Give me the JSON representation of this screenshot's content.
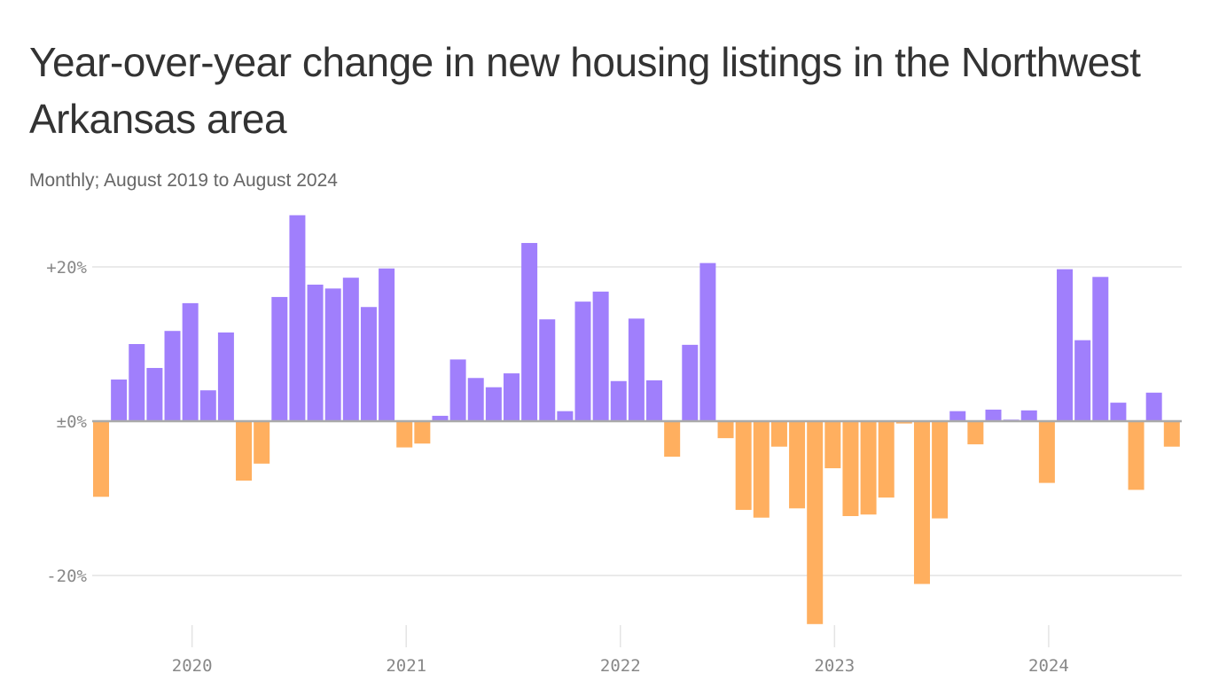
{
  "chart_data": {
    "type": "bar",
    "title": "Year-over-year change in new housing listings in the Northwest Arkansas area",
    "subtitle": "Monthly; August 2019 to August 2024",
    "start_month": "2019-08",
    "end_month": "2024-08",
    "values": [
      -9.8,
      5.4,
      10.0,
      6.9,
      11.7,
      15.3,
      4.0,
      11.5,
      -7.7,
      -5.5,
      16.1,
      26.7,
      17.7,
      17.2,
      18.6,
      14.8,
      19.8,
      -3.4,
      -2.9,
      0.7,
      8.0,
      5.6,
      4.4,
      6.2,
      23.1,
      13.2,
      1.3,
      15.5,
      16.8,
      5.2,
      13.3,
      5.3,
      -4.6,
      9.9,
      20.5,
      -2.2,
      -11.5,
      -12.5,
      -3.3,
      -11.3,
      -26.3,
      -6.1,
      -12.3,
      -12.1,
      -9.9,
      -0.3,
      -21.1,
      -12.6,
      1.3,
      -3.0,
      1.5,
      0.2,
      1.4,
      -8.0,
      19.7,
      10.5,
      18.7,
      2.4,
      -8.9,
      3.7,
      -3.3
    ],
    "ylim": [
      -30,
      27
    ],
    "y_ticks": [
      {
        "value": 20,
        "label": "+20%"
      },
      {
        "value": 0,
        "label": "±0%"
      },
      {
        "value": -20,
        "label": "-20%"
      }
    ],
    "x_ticks": [
      {
        "label": "2020",
        "index": 5
      },
      {
        "label": "2021",
        "index": 17
      },
      {
        "label": "2022",
        "index": 29
      },
      {
        "label": "2023",
        "index": 41
      },
      {
        "label": "2024",
        "index": 53
      }
    ],
    "colors": {
      "positive": "#a07ffc",
      "negative": "#ffaf5f",
      "grid": "#e4e4e4",
      "zero": "#aaaaaa"
    },
    "grid": true
  }
}
